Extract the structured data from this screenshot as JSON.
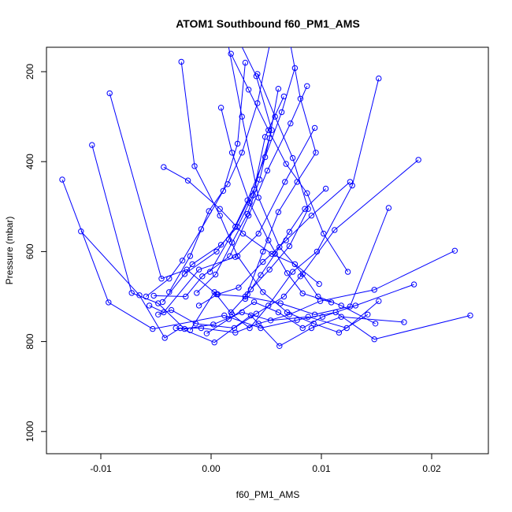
{
  "chart_data": {
    "type": "line",
    "title": "ATOM1 Southbound f60_PM1_AMS",
    "xlabel": "f60_PM1_AMS",
    "ylabel": "Pressure (mbar)",
    "xlim": [
      -0.015,
      0.025
    ],
    "ylim": [
      1050,
      150
    ],
    "y_axis_reversed": true,
    "x_ticks": [
      -0.01,
      0.0,
      0.01,
      0.02
    ],
    "x_tick_labels": [
      "-0.01",
      "0.00",
      "0.01",
      "0.02"
    ],
    "y_ticks": [
      200,
      400,
      600,
      800,
      1000
    ],
    "y_tick_labels": [
      "200",
      "400",
      "600",
      "800",
      "1000"
    ],
    "grid": false,
    "legend": "none",
    "marker": "open-circle",
    "color": "#0000ff",
    "series": [
      {
        "x": [
          -0.0135,
          -0.0093,
          -0.0053,
          0.0012,
          0.0045,
          0.0078,
          0.0113,
          0.0148,
          0.0235
        ],
        "y": [
          440,
          713,
          772,
          742,
          770,
          752,
          735,
          795,
          742
        ]
      },
      {
        "x": [
          -0.0118,
          -0.0065,
          -0.0042,
          -0.0028,
          0.0003,
          0.0036,
          0.0062,
          0.0091,
          0.0118,
          0.0175
        ],
        "y": [
          555,
          697,
          792,
          770,
          802,
          742,
          810,
          770,
          745,
          757
        ]
      },
      {
        "x": [
          -0.0108,
          -0.0072,
          -0.0048,
          -0.0024,
          0.0002,
          0.0028,
          0.0054,
          0.0088,
          0.0123,
          0.0152
        ],
        "y": [
          363,
          692,
          715,
          772,
          762,
          735,
          753,
          745,
          770,
          710
        ]
      },
      {
        "x": [
          -0.0092,
          -0.0045,
          -0.0022,
          0.0005,
          0.0031,
          0.0063,
          0.0094,
          0.0126,
          0.0161
        ],
        "y": [
          248,
          660,
          640,
          695,
          700,
          715,
          740,
          722,
          503
        ]
      },
      {
        "x": [
          0.0152,
          0.0128,
          0.0096,
          0.0074,
          0.0052,
          0.0035,
          0.0019,
          0.0003,
          -0.0019
        ],
        "y": [
          215,
          453,
          600,
          645,
          720,
          770,
          740,
          690,
          775
        ]
      },
      {
        "x": [
          0.0188,
          0.0112,
          0.0081,
          0.0066,
          0.0041,
          0.0021,
          -0.0014,
          -0.0036,
          -0.0048
        ],
        "y": [
          396,
          552,
          655,
          700,
          738,
          770,
          760,
          730,
          740
        ]
      },
      {
        "x": [
          0.0221,
          0.0148,
          0.0099,
          0.0071,
          0.0043,
          0.0022,
          -0.0009,
          -0.0032
        ],
        "y": [
          598,
          685,
          710,
          740,
          760,
          780,
          770,
          770
        ]
      },
      {
        "x": [
          0.0184,
          0.0131,
          0.0101,
          0.0083,
          0.0061,
          0.0039,
          0.0016,
          -0.0004
        ],
        "y": [
          673,
          720,
          745,
          770,
          735,
          712,
          750,
          782
        ]
      },
      {
        "x": [
          -0.0027,
          -0.0015,
          0.0008,
          0.0024,
          0.0047,
          0.0069,
          0.0093,
          0.0116,
          0.0142
        ],
        "y": [
          178,
          410,
          520,
          610,
          690,
          735,
          760,
          780,
          740
        ]
      },
      {
        "x": [
          0.0012,
          0.0028,
          0.0043,
          0.0062,
          0.0083,
          0.0097,
          0.0118,
          0.0149
        ],
        "y": [
          95,
          300,
          480,
          590,
          650,
          700,
          720,
          760
        ]
      },
      {
        "x": [
          0.0087,
          0.0072,
          0.0051,
          0.0034,
          0.0017,
          -0.0008,
          -0.0023,
          -0.0052
        ],
        "y": [
          232,
          315,
          420,
          520,
          610,
          655,
          700,
          698
        ]
      },
      {
        "x": [
          0.0094,
          0.0067,
          0.0043,
          0.0022,
          -0.0011,
          -0.0043,
          -0.0056
        ],
        "y": [
          325,
          445,
          560,
          612,
          640,
          735,
          720
        ]
      },
      {
        "x": [
          0.0054,
          0.0042,
          0.0028,
          0.0015,
          -0.0002,
          -0.0019,
          -0.0038
        ],
        "y": [
          130,
          270,
          380,
          450,
          510,
          610,
          690
        ]
      },
      {
        "x": [
          0.0031,
          0.0024,
          0.0011,
          -0.0009,
          -0.0026,
          -0.0038,
          -0.0059
        ],
        "y": [
          180,
          360,
          465,
          550,
          620,
          660,
          700
        ]
      },
      {
        "x": [
          0.0066,
          0.0049,
          0.0038,
          0.0024,
          0.0009,
          -0.0017,
          -0.0044
        ],
        "y": [
          255,
          345,
          475,
          545,
          585,
          628,
          712
        ]
      },
      {
        "x": [
          0.0072,
          0.0081,
          0.0095,
          0.0078,
          0.0061,
          0.0047,
          0.0031
        ],
        "y": [
          140,
          260,
          380,
          445,
          512,
          600,
          705
        ]
      },
      {
        "x": [
          0.0018,
          0.0034,
          0.0052,
          0.0068,
          0.0087,
          0.0102,
          0.0124
        ],
        "y": [
          160,
          240,
          330,
          405,
          470,
          560,
          645
        ]
      },
      {
        "x": [
          -0.0043,
          -0.0021,
          0.0008,
          0.0029,
          0.0055,
          0.0076,
          0.0098
        ],
        "y": [
          412,
          442,
          505,
          560,
          605,
          628,
          672
        ]
      },
      {
        "x": [
          0.0126,
          0.0091,
          0.0068,
          0.0047,
          0.0025,
          0.0006,
          -0.0011
        ],
        "y": [
          445,
          520,
          575,
          623,
          680,
          695,
          720
        ]
      },
      {
        "x": [
          0.0042,
          0.0058,
          0.0074,
          0.0088,
          0.0071,
          0.0053,
          0.0036
        ],
        "y": [
          205,
          300,
          392,
          505,
          588,
          640,
          684
        ]
      },
      {
        "x": [
          0.0023,
          0.0041,
          0.0055,
          0.0039,
          0.0022,
          0.0005,
          -0.0024
        ],
        "y": [
          120,
          210,
          330,
          462,
          545,
          600,
          650
        ]
      },
      {
        "x": [
          0.0061,
          0.0053,
          0.0044,
          0.0033,
          0.0019,
          0.0004,
          -0.0013
        ],
        "y": [
          238,
          348,
          440,
          516,
          580,
          651,
          692
        ]
      },
      {
        "x": [
          0.0104,
          0.0085,
          0.0071,
          0.0058,
          0.0045,
          0.0033,
          0.0018
        ],
        "y": [
          460,
          505,
          556,
          605,
          652,
          695,
          735
        ]
      },
      {
        "x": [
          0.0009,
          0.0019,
          0.0035,
          0.0052,
          0.0069,
          0.0083,
          0.0109
        ],
        "y": [
          280,
          380,
          492,
          575,
          648,
          693,
          713
        ]
      },
      {
        "x": [
          0.0076,
          0.0064,
          0.0049,
          0.0033,
          0.0016,
          -0.0001
        ],
        "y": [
          192,
          290,
          390,
          486,
          573,
          645
        ]
      }
    ]
  }
}
